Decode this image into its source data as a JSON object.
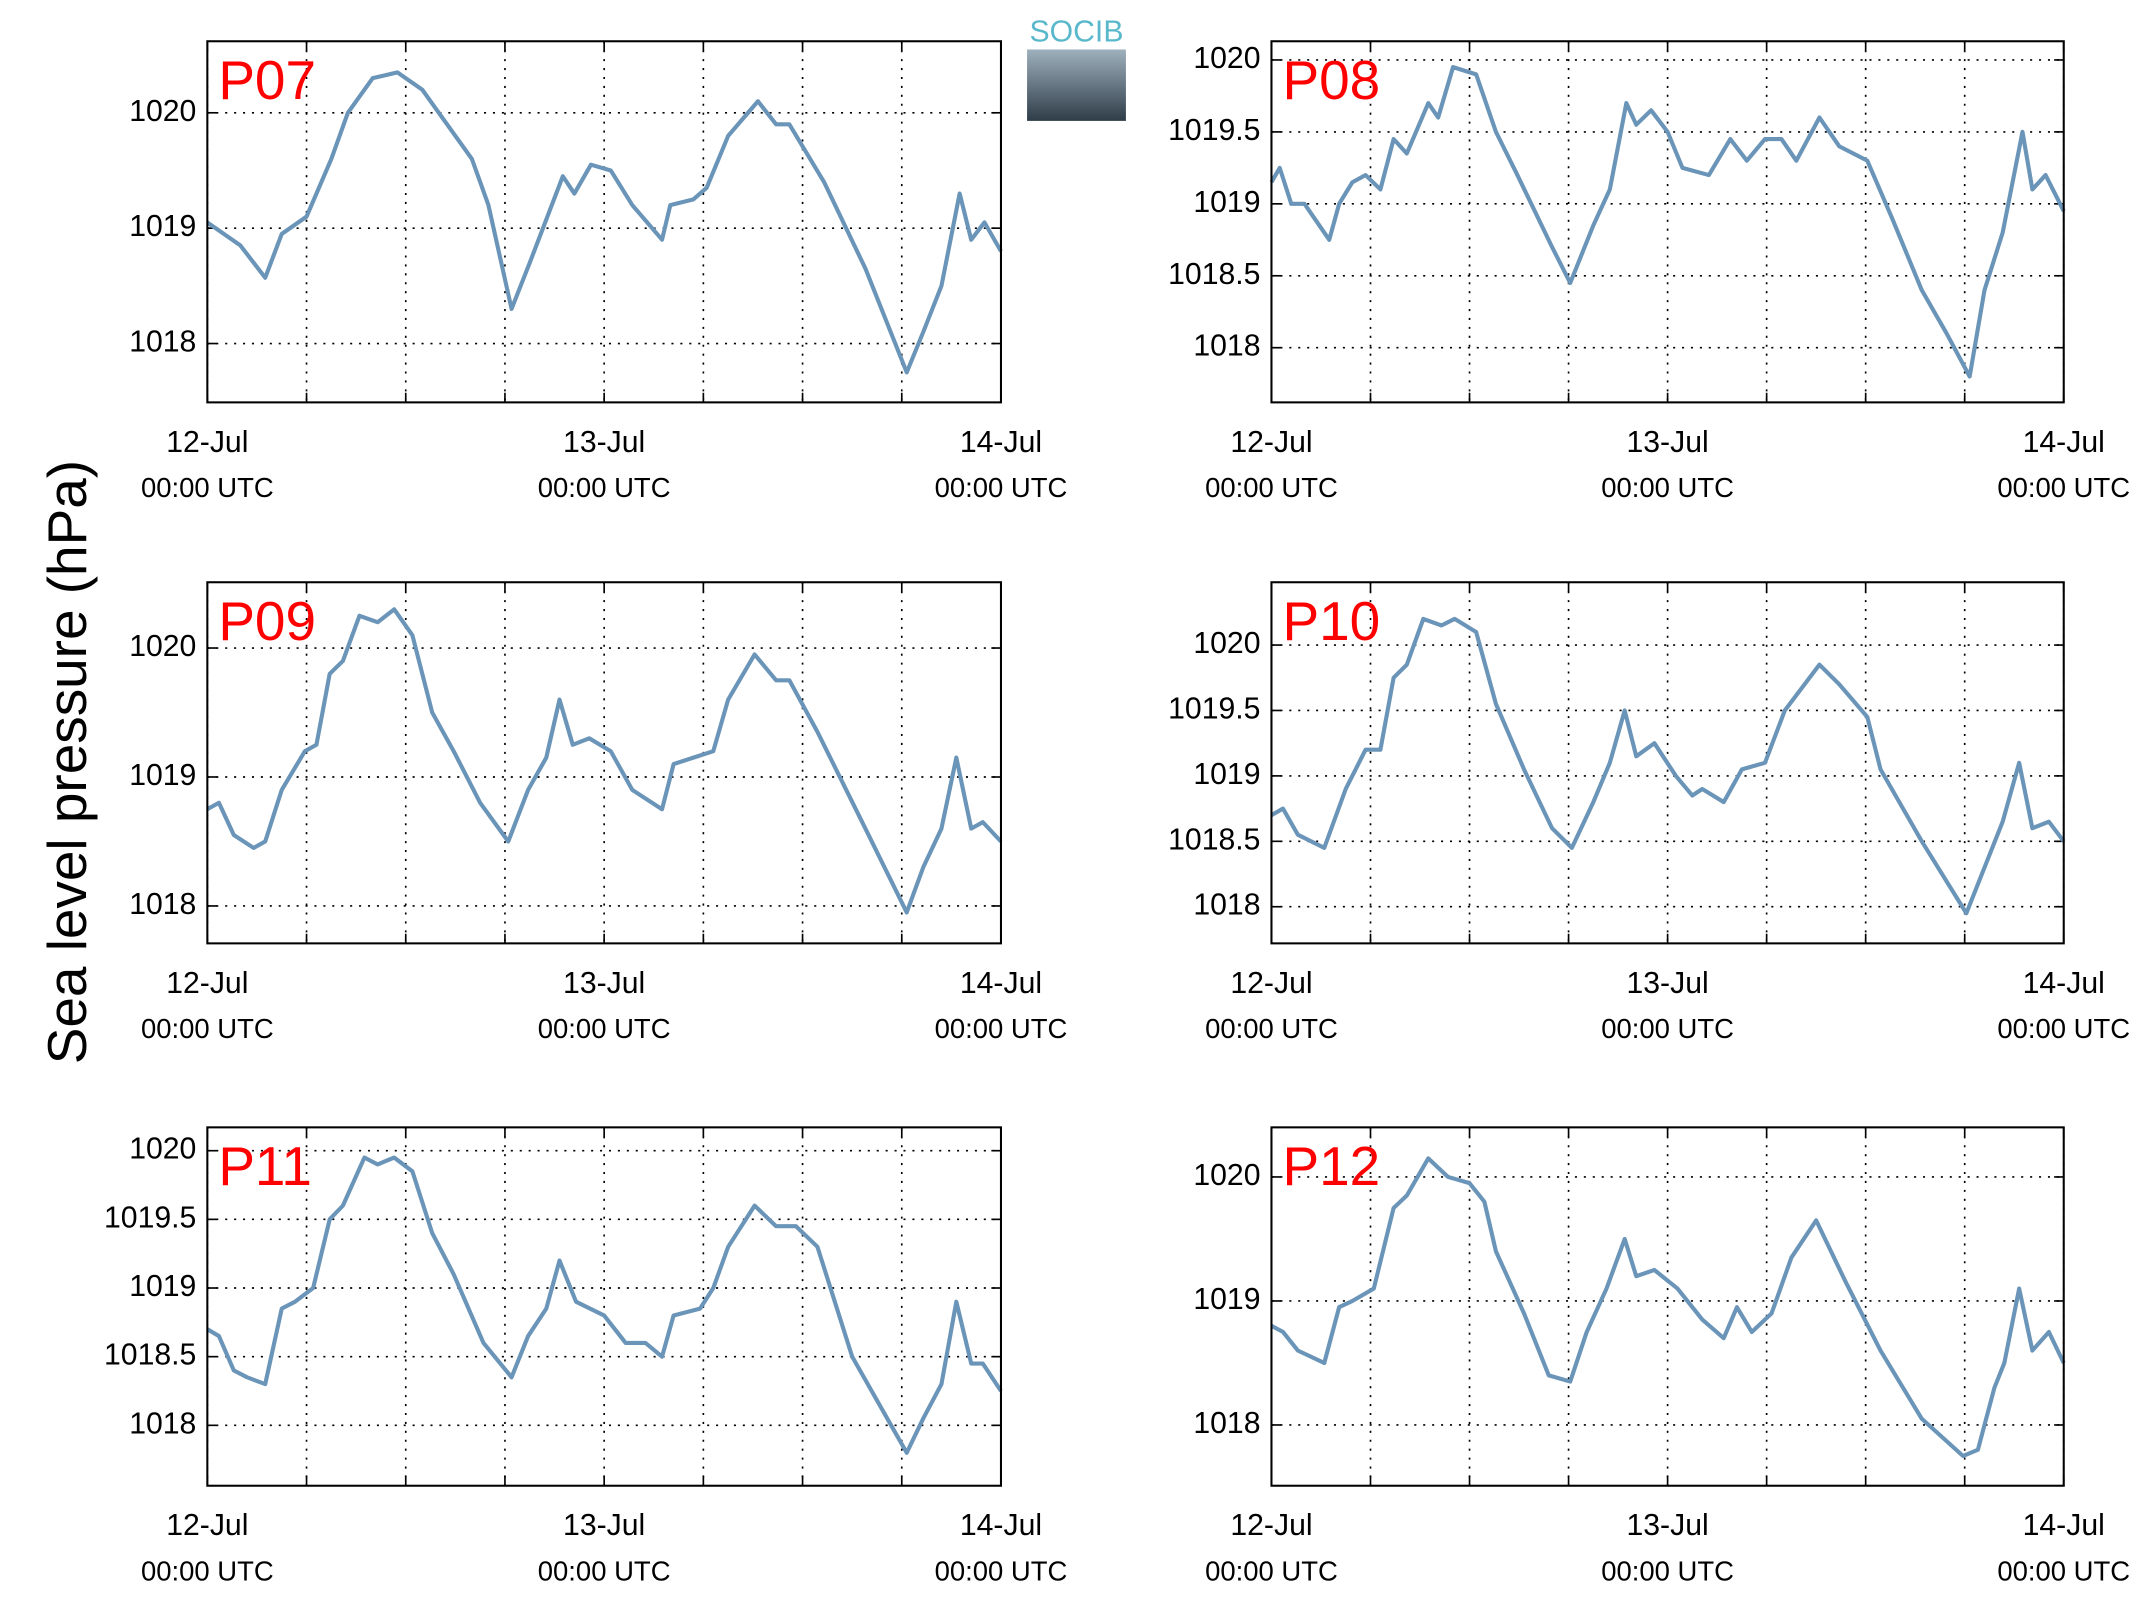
{
  "ylabel": "Sea level pressure (hPa)",
  "logo": "SOCIB",
  "chart_data": [
    {
      "type": "line",
      "title": "P07",
      "color": "#6b95b8",
      "grid": true,
      "xlim": [
        0,
        48
      ],
      "ylim": [
        1017.49,
        1020.62
      ],
      "xticks": [
        {
          "value": 0,
          "label": "12-Jul\n00:00 UTC"
        },
        {
          "value": 24,
          "label": "13-Jul\n00:00 UTC"
        },
        {
          "value": 48,
          "label": "14-Jul\n00:00 UTC"
        }
      ],
      "x_minor_ticks": [
        6,
        12,
        18,
        30,
        36,
        42
      ],
      "yticks": [
        1018,
        1019,
        1020
      ],
      "x": [
        0,
        2,
        3.5,
        4.5,
        6,
        7.5,
        8.5,
        10,
        11.5,
        13,
        14,
        16,
        17,
        18.4,
        19.5,
        21.5,
        22.2,
        23.2,
        24.4,
        25.7,
        27.5,
        28,
        29.4,
        30.2,
        31.5,
        33.3,
        34.4,
        35.2,
        37.3,
        39.8,
        42.3,
        43.3,
        44.4,
        45.5,
        46.2,
        47,
        48
      ],
      "values": [
        1019.05,
        1018.85,
        1018.57,
        1018.95,
        1019.1,
        1019.6,
        1020.0,
        1020.3,
        1020.35,
        1020.2,
        1020.0,
        1019.6,
        1019.2,
        1018.3,
        1018.7,
        1019.45,
        1019.3,
        1019.55,
        1019.5,
        1019.2,
        1018.9,
        1019.2,
        1019.25,
        1019.35,
        1019.8,
        1020.1,
        1019.9,
        1019.9,
        1019.4,
        1018.65,
        1017.75,
        1018.1,
        1018.5,
        1019.3,
        1018.9,
        1019.05,
        1018.8
      ]
    },
    {
      "type": "line",
      "title": "P08",
      "color": "#6b95b8",
      "grid": true,
      "xlim": [
        0,
        48
      ],
      "ylim": [
        1017.62,
        1020.13
      ],
      "xticks": [
        {
          "value": 0,
          "label": "12-Jul\n00:00 UTC"
        },
        {
          "value": 24,
          "label": "13-Jul\n00:00 UTC"
        },
        {
          "value": 48,
          "label": "14-Jul\n00:00 UTC"
        }
      ],
      "x_minor_ticks": [
        6,
        12,
        18,
        30,
        36,
        42
      ],
      "yticks": [
        1018,
        1018.5,
        1019,
        1019.5,
        1020
      ],
      "x": [
        0,
        0.5,
        1.2,
        2,
        3.5,
        4.1,
        4.9,
        5.7,
        6.6,
        7.4,
        8.2,
        9.5,
        10.1,
        11,
        12.4,
        13.6,
        14.9,
        17,
        18.1,
        19.5,
        20.5,
        21.5,
        22.1,
        23,
        24,
        24.9,
        26.5,
        27.8,
        28.8,
        29.9,
        30.9,
        31.8,
        33.2,
        34.4,
        36.1,
        37.6,
        39.4,
        40.9,
        42.3,
        43.2,
        44.3,
        45.5,
        46.1,
        46.9,
        48
      ],
      "values": [
        1019.15,
        1019.25,
        1019.0,
        1019.0,
        1018.75,
        1019.0,
        1019.15,
        1019.2,
        1019.1,
        1019.45,
        1019.35,
        1019.7,
        1019.6,
        1019.95,
        1019.9,
        1019.5,
        1019.2,
        1018.7,
        1018.45,
        1018.85,
        1019.1,
        1019.7,
        1019.55,
        1019.65,
        1019.5,
        1019.25,
        1019.2,
        1019.45,
        1019.3,
        1019.45,
        1019.45,
        1019.3,
        1019.6,
        1019.4,
        1019.3,
        1018.9,
        1018.4,
        1018.1,
        1017.8,
        1018.4,
        1018.8,
        1019.5,
        1019.1,
        1019.2,
        1018.95
      ]
    },
    {
      "type": "line",
      "title": "P09",
      "color": "#6b95b8",
      "grid": true,
      "xlim": [
        0,
        48
      ],
      "ylim": [
        1017.71,
        1020.51
      ],
      "xticks": [
        {
          "value": 0,
          "label": "12-Jul\n00:00 UTC"
        },
        {
          "value": 24,
          "label": "13-Jul\n00:00 UTC"
        },
        {
          "value": 48,
          "label": "14-Jul\n00:00 UTC"
        }
      ],
      "x_minor_ticks": [
        6,
        12,
        18,
        30,
        36,
        42
      ],
      "yticks": [
        1018,
        1019,
        1020
      ],
      "x": [
        0,
        0.7,
        1.6,
        2.8,
        3.5,
        4.5,
        5.9,
        6.6,
        7.4,
        8.2,
        9.2,
        10.3,
        11.3,
        12.4,
        13.6,
        14.9,
        16.5,
        18.2,
        19.4,
        20.5,
        21.3,
        22.1,
        23.1,
        24.4,
        25.7,
        27.5,
        28.2,
        29.4,
        30.6,
        31.5,
        33.1,
        34.4,
        35.2,
        36.9,
        39.8,
        42.3,
        43.3,
        44.4,
        45.3,
        46.2,
        46.9,
        48
      ],
      "values": [
        1018.75,
        1018.8,
        1018.55,
        1018.45,
        1018.5,
        1018.9,
        1019.2,
        1019.25,
        1019.8,
        1019.9,
        1020.25,
        1020.2,
        1020.3,
        1020.1,
        1019.5,
        1019.2,
        1018.8,
        1018.5,
        1018.9,
        1019.15,
        1019.6,
        1019.25,
        1019.3,
        1019.2,
        1018.9,
        1018.75,
        1019.1,
        1019.15,
        1019.2,
        1019.6,
        1019.95,
        1019.75,
        1019.75,
        1019.35,
        1018.6,
        1017.95,
        1018.3,
        1018.6,
        1019.15,
        1018.6,
        1018.65,
        1018.5
      ]
    },
    {
      "type": "line",
      "title": "P10",
      "color": "#6b95b8",
      "grid": true,
      "xlim": [
        0,
        48
      ],
      "ylim": [
        1017.72,
        1020.48
      ],
      "xticks": [
        {
          "value": 0,
          "label": "12-Jul\n00:00 UTC"
        },
        {
          "value": 24,
          "label": "13-Jul\n00:00 UTC"
        },
        {
          "value": 48,
          "label": "14-Jul\n00:00 UTC"
        }
      ],
      "x_minor_ticks": [
        6,
        12,
        18,
        30,
        36,
        42
      ],
      "yticks": [
        1018,
        1018.5,
        1019,
        1019.5,
        1020
      ],
      "x": [
        0,
        0.7,
        1.6,
        3.2,
        4.5,
        5.7,
        6.6,
        7.4,
        8.2,
        9.2,
        10.3,
        11.1,
        12.4,
        13.6,
        15.3,
        17,
        18.2,
        19.5,
        20.5,
        21.4,
        22.1,
        23.2,
        24.5,
        25.5,
        26.1,
        27.4,
        28.5,
        29.9,
        31.1,
        33.2,
        34.4,
        36.1,
        36.9,
        39.4,
        42.1,
        43.2,
        44.3,
        45.3,
        46.1,
        47.1,
        48
      ],
      "values": [
        1018.7,
        1018.75,
        1018.55,
        1018.45,
        1018.9,
        1019.2,
        1019.2,
        1019.75,
        1019.85,
        1020.2,
        1020.15,
        1020.2,
        1020.1,
        1019.55,
        1019.05,
        1018.6,
        1018.45,
        1018.8,
        1019.1,
        1019.5,
        1019.15,
        1019.25,
        1019.0,
        1018.85,
        1018.9,
        1018.8,
        1019.05,
        1019.1,
        1019.5,
        1019.85,
        1019.7,
        1019.45,
        1019.05,
        1018.5,
        1017.95,
        1018.3,
        1018.65,
        1019.1,
        1018.6,
        1018.65,
        1018.5
      ]
    },
    {
      "type": "line",
      "title": "P11",
      "color": "#6b95b8",
      "grid": true,
      "xlim": [
        0,
        48
      ],
      "ylim": [
        1017.56,
        1020.17
      ],
      "xticks": [
        {
          "value": 0,
          "label": "12-Jul\n00:00 UTC"
        },
        {
          "value": 24,
          "label": "13-Jul\n00:00 UTC"
        },
        {
          "value": 48,
          "label": "14-Jul\n00:00 UTC"
        }
      ],
      "x_minor_ticks": [
        6,
        12,
        18,
        30,
        36,
        42
      ],
      "yticks": [
        1018,
        1018.5,
        1019,
        1019.5,
        1020
      ],
      "x": [
        0,
        0.7,
        1.6,
        2.4,
        3.5,
        4.5,
        5.3,
        6.4,
        7.4,
        8.2,
        9.5,
        10.3,
        11.3,
        12.4,
        13.6,
        14.9,
        16.7,
        18.4,
        19.4,
        20.5,
        21.3,
        22.3,
        24,
        25.3,
        26.5,
        27.5,
        28.2,
        29.8,
        30.6,
        31.5,
        33.1,
        34.4,
        35.6,
        36.9,
        39,
        42.3,
        43.3,
        44.4,
        45.3,
        46.2,
        46.9,
        48
      ],
      "values": [
        1018.7,
        1018.65,
        1018.4,
        1018.35,
        1018.3,
        1018.85,
        1018.9,
        1019.0,
        1019.5,
        1019.6,
        1019.95,
        1019.9,
        1019.95,
        1019.85,
        1019.4,
        1019.1,
        1018.6,
        1018.35,
        1018.65,
        1018.85,
        1019.2,
        1018.9,
        1018.8,
        1018.6,
        1018.6,
        1018.5,
        1018.8,
        1018.85,
        1019.0,
        1019.3,
        1019.6,
        1019.45,
        1019.45,
        1019.3,
        1018.5,
        1017.8,
        1018.05,
        1018.3,
        1018.9,
        1018.45,
        1018.45,
        1018.25
      ]
    },
    {
      "type": "line",
      "title": "P12",
      "color": "#6b95b8",
      "grid": true,
      "xlim": [
        0,
        48
      ],
      "ylim": [
        1017.51,
        1020.4
      ],
      "xticks": [
        {
          "value": 0,
          "label": "12-Jul\n00:00 UTC"
        },
        {
          "value": 24,
          "label": "13-Jul\n00:00 UTC"
        },
        {
          "value": 48,
          "label": "14-Jul\n00:00 UTC"
        }
      ],
      "x_minor_ticks": [
        6,
        12,
        18,
        30,
        36,
        42
      ],
      "yticks": [
        1018,
        1019,
        1020
      ],
      "x": [
        0,
        0.7,
        1.6,
        3.2,
        4.1,
        4.9,
        6.2,
        7.4,
        8.2,
        9.5,
        10.7,
        12,
        12.9,
        13.6,
        15.3,
        16.8,
        18.1,
        19.1,
        20.3,
        21.4,
        22.1,
        23.2,
        24.6,
        26.1,
        27.4,
        28.2,
        29.1,
        30.3,
        31.5,
        33,
        34.8,
        36.9,
        39.4,
        41.9,
        42.8,
        43.8,
        44.4,
        45.3,
        46.1,
        47.1,
        48
      ],
      "values": [
        1018.8,
        1018.75,
        1018.6,
        1018.5,
        1018.95,
        1019.0,
        1019.1,
        1019.75,
        1019.85,
        1020.15,
        1020.0,
        1019.95,
        1019.8,
        1019.4,
        1018.9,
        1018.4,
        1018.35,
        1018.75,
        1019.1,
        1019.5,
        1019.2,
        1019.25,
        1019.1,
        1018.85,
        1018.7,
        1018.95,
        1018.75,
        1018.9,
        1019.35,
        1019.65,
        1019.15,
        1018.6,
        1018.05,
        1017.75,
        1017.8,
        1018.3,
        1018.5,
        1019.1,
        1018.6,
        1018.75,
        1018.5
      ]
    }
  ]
}
